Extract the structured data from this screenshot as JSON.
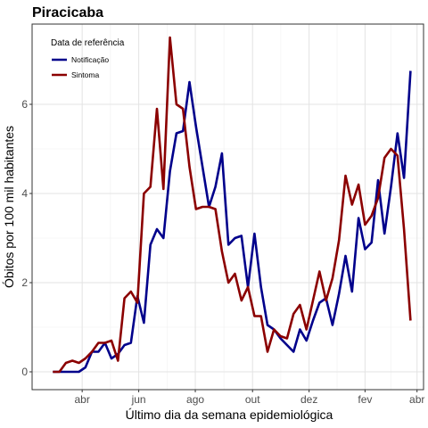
{
  "chart_data": {
    "type": "line",
    "title": "Piracicaba",
    "xlabel": "Último dia da semana epidemiológica",
    "ylabel": "Óbitos por 100 mil habitantes",
    "ylim": [
      -0.4,
      7.8
    ],
    "yticks": [
      0,
      2,
      4,
      6
    ],
    "xlim": [
      -3.2,
      57.0
    ],
    "xticks": [
      {
        "label": "abr",
        "x": 4.5
      },
      {
        "label": "jun",
        "x": 13.2
      },
      {
        "label": "ago",
        "x": 21.9
      },
      {
        "label": "out",
        "x": 30.7
      },
      {
        "label": "dez",
        "x": 39.4
      },
      {
        "label": "fev",
        "x": 48.0
      },
      {
        "label": "abr",
        "x": 56.0
      }
    ],
    "grid": true,
    "legend": {
      "title": "Data de referência",
      "position": "top-left"
    },
    "series": [
      {
        "name": "Notificação",
        "color": "#00008B",
        "values": [
          0,
          0,
          0,
          0,
          0,
          0.1,
          0.45,
          0.45,
          0.65,
          0.3,
          0.4,
          0.6,
          0.65,
          1.7,
          1.1,
          2.85,
          3.2,
          3.0,
          4.5,
          5.35,
          5.4,
          6.5,
          5.5,
          4.6,
          3.7,
          4.15,
          4.9,
          2.85,
          3.0,
          3.05,
          1.9,
          3.1,
          1.9,
          1.05,
          0.95,
          0.75,
          0.6,
          0.45,
          0.95,
          0.7,
          1.15,
          1.55,
          1.65,
          1.05,
          1.75,
          2.6,
          1.8,
          3.45,
          2.75,
          2.9,
          4.3,
          3.1,
          4.15,
          5.35,
          4.35,
          6.75
        ]
      },
      {
        "name": "Sintoma",
        "color": "#8B0000",
        "values": [
          0,
          0,
          0.2,
          0.25,
          0.2,
          0.3,
          0.45,
          0.65,
          0.65,
          0.7,
          0.25,
          1.65,
          1.8,
          1.55,
          4.0,
          4.15,
          5.9,
          4.1,
          7.5,
          6.0,
          5.9,
          4.6,
          3.65,
          3.7,
          3.7,
          3.65,
          2.7,
          2.0,
          2.2,
          1.6,
          1.9,
          1.25,
          1.25,
          0.45,
          0.95,
          0.8,
          0.75,
          1.3,
          1.5,
          0.95,
          1.6,
          2.25,
          1.6,
          2.1,
          2.95,
          4.4,
          3.75,
          4.2,
          3.3,
          3.5,
          3.9,
          4.8,
          5.0,
          4.85,
          3.2,
          1.15
        ]
      }
    ]
  }
}
